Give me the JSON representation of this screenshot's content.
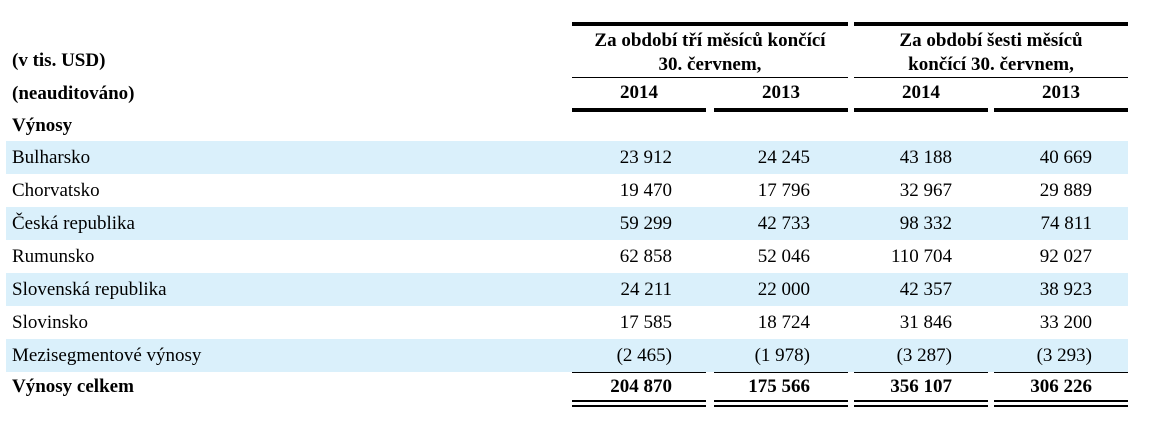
{
  "header": {
    "unit": "(v tis. USD)",
    "audit": "(neauditováno)",
    "group_three_months_line1": "Za období tří měsíců končící",
    "group_three_months_line2": "30. červnem,",
    "group_six_months_line1": "Za období šesti měsíců",
    "group_six_months_line2": "končící 30. červnem,",
    "years": [
      "2014",
      "2013",
      "2014",
      "2013"
    ]
  },
  "section_title": "Výnosy",
  "rows": [
    {
      "label": "Bulharsko",
      "values": [
        "23 912",
        "24 245",
        "43 188",
        "40 669"
      ],
      "shaded": true
    },
    {
      "label": "Chorvatsko",
      "values": [
        "19 470",
        "17 796",
        "32 967",
        "29 889"
      ],
      "shaded": false
    },
    {
      "label": "Česká republika",
      "values": [
        "59 299",
        "42 733",
        "98 332",
        "74 811"
      ],
      "shaded": true
    },
    {
      "label": "Rumunsko",
      "values": [
        "62 858",
        "52 046",
        "110 704",
        "92 027"
      ],
      "shaded": false
    },
    {
      "label": "Slovenská republika",
      "values": [
        "24 211",
        "22 000",
        "42 357",
        "38 923"
      ],
      "shaded": true
    },
    {
      "label": "Slovinsko",
      "values": [
        "17 585",
        "18 724",
        "31 846",
        "33 200"
      ],
      "shaded": false
    },
    {
      "label": "Mezisegmentové výnosy",
      "values": [
        "(2 465)",
        "(1 978)",
        "(3 287)",
        "(3 293)"
      ],
      "shaded": true
    }
  ],
  "total": {
    "label": "Výnosy celkem",
    "values": [
      "204 870",
      "175 566",
      "356 107",
      "306 226"
    ]
  },
  "colors": {
    "row_shade": "#daf0fb",
    "text": "#000000"
  }
}
